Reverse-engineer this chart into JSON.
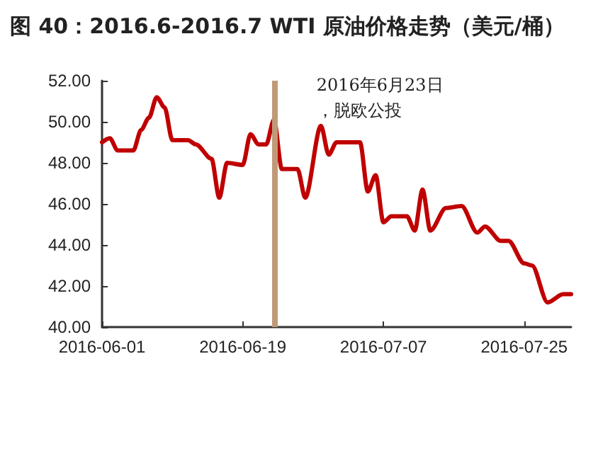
{
  "chart_data": {
    "type": "line",
    "title": "图 40：2016.6-2016.7 WTI 原油价格走势（美元/桶）",
    "x": [
      "2016-06-01",
      "2016-06-02",
      "2016-06-03",
      "2016-06-05",
      "2016-06-06",
      "2016-06-07",
      "2016-06-08",
      "2016-06-09",
      "2016-06-10",
      "2016-06-12",
      "2016-06-13",
      "2016-06-15",
      "2016-06-16",
      "2016-06-17",
      "2016-06-19",
      "2016-06-20",
      "2016-06-21",
      "2016-06-22",
      "2016-06-23",
      "2016-06-24",
      "2016-06-26",
      "2016-06-27",
      "2016-06-29",
      "2016-06-30",
      "2016-07-01",
      "2016-07-04",
      "2016-07-05",
      "2016-07-06",
      "2016-07-07",
      "2016-07-08",
      "2016-07-10",
      "2016-07-11",
      "2016-07-12",
      "2016-07-13",
      "2016-07-15",
      "2016-07-17",
      "2016-07-19",
      "2016-07-20",
      "2016-07-22",
      "2016-07-23",
      "2016-07-25",
      "2016-07-26",
      "2016-07-28",
      "2016-07-30",
      "2016-07-31"
    ],
    "series": [
      {
        "color": "#c00000",
        "values": [
          49.0,
          49.2,
          48.6,
          48.6,
          49.6,
          50.2,
          51.2,
          50.7,
          49.1,
          49.1,
          48.9,
          48.2,
          46.3,
          48.0,
          47.9,
          49.4,
          48.9,
          48.9,
          50.1,
          47.7,
          47.7,
          46.3,
          49.8,
          48.4,
          49.0,
          49.0,
          46.6,
          47.4,
          45.1,
          45.4,
          45.4,
          44.7,
          46.7,
          44.7,
          45.8,
          45.9,
          44.6,
          44.9,
          44.2,
          44.2,
          43.1,
          43.0,
          41.2,
          41.6,
          41.6
        ]
      }
    ],
    "xlim": [
      "2016-06-01",
      "2016-07-31"
    ],
    "xticks": [
      "2016-06-01",
      "2016-06-19",
      "2016-07-07",
      "2016-07-25"
    ],
    "ylim": [
      40,
      52
    ],
    "yticks": [
      {
        "value": 40,
        "label": "40.00"
      },
      {
        "value": 42,
        "label": "42.00"
      },
      {
        "value": 44,
        "label": "44.00"
      },
      {
        "value": 46,
        "label": "46.00"
      },
      {
        "value": 48,
        "label": "48.00"
      },
      {
        "value": 50,
        "label": "50.00"
      },
      {
        "value": 52,
        "label": "52.00"
      }
    ],
    "ref_lines": [
      {
        "axis": "x",
        "value": "2016-06-23",
        "label": "2016年6月23日，脱欧公投",
        "color": "#c09a78"
      }
    ],
    "grid": false,
    "marker": "none",
    "line_style": "solid"
  }
}
